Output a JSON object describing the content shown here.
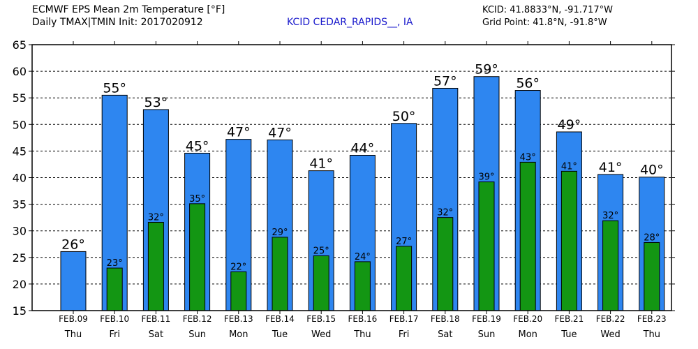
{
  "header": {
    "title_line1": "ECMWF EPS Mean 2m Temperature [°F]",
    "title_line2": "Daily TMAX|TMIN Init: 2017020912",
    "station": "KCID CEDAR_RAPIDS__, IA",
    "station_coords": "KCID: 41.8833°N, -91.717°W",
    "grid_point": "Grid Point: 41.8°N, -91.8°W"
  },
  "colors": {
    "tmax": "#2e86f0",
    "tmin": "#139613",
    "station_text": "#1a1acc"
  },
  "chart_data": {
    "type": "bar",
    "ylim": [
      15,
      65
    ],
    "yticks": [
      15,
      20,
      25,
      30,
      35,
      40,
      45,
      50,
      55,
      60,
      65
    ],
    "grid": true,
    "categories": [
      "FEB.09",
      "FEB.10",
      "FEB.11",
      "FEB.12",
      "FEB.13",
      "FEB.14",
      "FEB.15",
      "FEB.16",
      "FEB.17",
      "FEB.18",
      "FEB.19",
      "FEB.20",
      "FEB.21",
      "FEB.22",
      "FEB.23"
    ],
    "weekdays": [
      "Thu",
      "Fri",
      "Sat",
      "Sun",
      "Mon",
      "Tue",
      "Wed",
      "Thu",
      "Fri",
      "Sat",
      "Sun",
      "Mon",
      "Tue",
      "Wed",
      "Thu"
    ],
    "series": [
      {
        "key": "tmax",
        "values": [
          26.1,
          55.5,
          52.8,
          44.6,
          47.2,
          47.1,
          41.3,
          44.2,
          50.2,
          56.8,
          59.0,
          56.4,
          48.6,
          40.6,
          40.1
        ],
        "labels": [
          "26°",
          "55°",
          "53°",
          "45°",
          "47°",
          "47°",
          "41°",
          "44°",
          "50°",
          "57°",
          "59°",
          "56°",
          "49°",
          "41°",
          "40°"
        ]
      },
      {
        "key": "tmin",
        "values": [
          null,
          23.0,
          31.6,
          35.1,
          22.3,
          28.8,
          25.3,
          24.2,
          27.1,
          32.5,
          39.2,
          42.9,
          41.2,
          31.9,
          27.8
        ],
        "labels": [
          null,
          "23°",
          "32°",
          "35°",
          "22°",
          "29°",
          "25°",
          "24°",
          "27°",
          "32°",
          "39°",
          "43°",
          "41°",
          "32°",
          "28°"
        ]
      }
    ]
  }
}
